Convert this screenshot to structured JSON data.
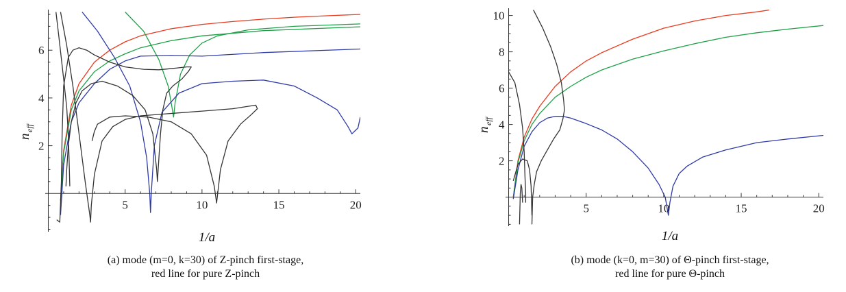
{
  "chart_data": [
    {
      "type": "line",
      "caption_line1": "(a) mode (m=0, k=30) of Z-pinch first-stage,",
      "caption_line2": "red line for pure Z-pinch",
      "xlabel": "1/a",
      "ylabel": "n_eff",
      "ylabel_main": "n",
      "ylabel_sub": "eff",
      "xlim": [
        -0.2,
        20.3
      ],
      "ylim": [
        -1.6,
        7.7
      ],
      "xticks": [
        5,
        10,
        15,
        20
      ],
      "yticks": [
        2,
        4,
        6
      ],
      "series": [
        {
          "color": "#e83a1e",
          "points": [
            [
              0.8,
              -0.3
            ],
            [
              1.0,
              1.8
            ],
            [
              1.5,
              3.7
            ],
            [
              2,
              4.6
            ],
            [
              3,
              5.5
            ],
            [
              4,
              6.0
            ],
            [
              5,
              6.35
            ],
            [
              6,
              6.6
            ],
            [
              8,
              6.9
            ],
            [
              10,
              7.08
            ],
            [
              12,
              7.2
            ],
            [
              14,
              7.3
            ],
            [
              16,
              7.38
            ],
            [
              18,
              7.44
            ],
            [
              20.3,
              7.5
            ]
          ]
        },
        {
          "color": "#1ea048",
          "points": [
            [
              0.8,
              -0.3
            ],
            [
              1.0,
              1.7
            ],
            [
              1.5,
              3.5
            ],
            [
              2,
              4.3
            ],
            [
              3,
              5.1
            ],
            [
              4,
              5.55
            ],
            [
              5,
              5.85
            ],
            [
              6,
              6.1
            ],
            [
              8,
              6.4
            ],
            [
              10,
              6.6
            ],
            [
              14,
              6.82
            ],
            [
              20.3,
              6.98
            ]
          ]
        },
        {
          "color": "#1ea048",
          "points": [
            [
              5,
              7.6
            ],
            [
              6.2,
              6.8
            ],
            [
              7.2,
              5.6
            ],
            [
              7.8,
              4.5
            ],
            [
              8.05,
              3.6
            ],
            [
              8.15,
              3.2
            ],
            [
              8.25,
              3.8
            ],
            [
              8.6,
              5.0
            ],
            [
              9.2,
              5.8
            ],
            [
              10,
              6.3
            ],
            [
              11,
              6.6
            ],
            [
              13,
              6.85
            ],
            [
              16,
              7.0
            ],
            [
              20.3,
              7.1
            ]
          ]
        },
        {
          "color": "#2e3aa6",
          "points": [
            [
              0.8,
              -0.9
            ],
            [
              1.0,
              1.2
            ],
            [
              1.5,
              3.0
            ],
            [
              2,
              3.8
            ],
            [
              3,
              4.6
            ],
            [
              4,
              5.2
            ],
            [
              5,
              5.55
            ],
            [
              6,
              5.75
            ],
            [
              8,
              5.78
            ],
            [
              10,
              5.75
            ],
            [
              14,
              5.9
            ],
            [
              20.3,
              6.05
            ]
          ]
        },
        {
          "color": "#2e3aa6",
          "points": [
            [
              2.2,
              7.6
            ],
            [
              3.2,
              6.8
            ],
            [
              4.3,
              5.7
            ],
            [
              5.3,
              4.5
            ],
            [
              6.0,
              3.0
            ],
            [
              6.4,
              1.5
            ],
            [
              6.6,
              0
            ],
            [
              6.65,
              -0.8
            ],
            [
              6.7,
              0
            ],
            [
              6.9,
              2.0
            ],
            [
              7.4,
              3.4
            ],
            [
              8.5,
              4.2
            ],
            [
              10,
              4.6
            ],
            [
              12,
              4.7
            ],
            [
              14,
              4.75
            ],
            [
              16,
              4.5
            ],
            [
              17.5,
              4.0
            ],
            [
              18.8,
              3.5
            ],
            [
              19.5,
              2.8
            ],
            [
              19.75,
              2.5
            ],
            [
              20.0,
              2.65
            ],
            [
              20.15,
              2.75
            ],
            [
              20.3,
              3.2
            ]
          ]
        },
        {
          "color": "#333333",
          "points": [
            [
              0.8,
              7.6
            ],
            [
              1.2,
              6.2
            ],
            [
              1.6,
              4.5
            ],
            [
              2,
              2.5
            ],
            [
              2.4,
              0.5
            ],
            [
              2.7,
              -0.9
            ],
            [
              2.75,
              -1.2
            ],
            [
              2.8,
              -0.5
            ],
            [
              3.0,
              0.8
            ],
            [
              3.5,
              2.2
            ],
            [
              4.2,
              2.8
            ],
            [
              5,
              3.1
            ],
            [
              6,
              3.25
            ],
            [
              8,
              3.35
            ],
            [
              10,
              3.45
            ],
            [
              12,
              3.55
            ],
            [
              13,
              3.65
            ],
            [
              13.5,
              3.7
            ],
            [
              13.6,
              3.55
            ],
            [
              13.2,
              3.3
            ],
            [
              12.5,
              2.9
            ],
            [
              11.7,
              2.2
            ],
            [
              11.2,
              1.0
            ],
            [
              10.95,
              -0.4
            ],
            [
              10.8,
              0.3
            ],
            [
              10.3,
              1.6
            ],
            [
              9.3,
              2.5
            ],
            [
              8.0,
              3.0
            ],
            [
              6.5,
              3.2
            ],
            [
              5,
              3.25
            ],
            [
              4,
              3.2
            ],
            [
              3.2,
              2.9
            ],
            [
              3.0,
              2.6
            ],
            [
              2.85,
              2.2
            ]
          ]
        },
        {
          "color": "#333333",
          "points": [
            [
              0.5,
              7.6
            ],
            [
              0.7,
              6.5
            ],
            [
              1.0,
              4.8
            ],
            [
              1.2,
              3.6
            ],
            [
              1.3,
              2.5
            ],
            [
              1.35,
              1.5
            ],
            [
              1.4,
              0.3
            ]
          ]
        },
        {
          "color": "#333333",
          "points": [
            [
              0.55,
              -1.1
            ],
            [
              0.75,
              -1.2
            ],
            [
              0.85,
              0.5
            ],
            [
              0.9,
              2.5
            ],
            [
              1.0,
              4.5
            ],
            [
              1.3,
              5.7
            ],
            [
              1.6,
              6.0
            ],
            [
              2.0,
              6.1
            ],
            [
              2.5,
              6.0
            ],
            [
              3,
              5.8
            ],
            [
              4,
              5.5
            ],
            [
              5,
              5.3
            ],
            [
              6.2,
              5.2
            ],
            [
              7.2,
              5.18
            ],
            [
              8.3,
              5.25
            ],
            [
              9.0,
              5.3
            ],
            [
              9.3,
              5.3
            ],
            [
              9.1,
              5.1
            ],
            [
              8.7,
              4.8
            ],
            [
              8.1,
              4.5
            ],
            [
              7.7,
              4.2
            ],
            [
              7.45,
              3.5
            ],
            [
              7.3,
              2.5
            ],
            [
              7.2,
              1.5
            ],
            [
              7.1,
              0.5
            ],
            [
              7.05,
              1.0
            ],
            [
              6.8,
              2.5
            ],
            [
              6.3,
              3.5
            ],
            [
              5.5,
              4.1
            ],
            [
              4.5,
              4.5
            ],
            [
              3.5,
              4.7
            ],
            [
              2.8,
              4.6
            ],
            [
              2.2,
              4.3
            ],
            [
              1.8,
              3.8
            ],
            [
              1.5,
              3.0
            ],
            [
              1.3,
              2.0
            ],
            [
              1.2,
              1.0
            ],
            [
              1.15,
              0.3
            ]
          ]
        }
      ]
    },
    {
      "type": "line",
      "caption_line1": "(b) mode (k=0, m=30) of Θ-pinch first-stage,",
      "caption_line2": "red line for pure Θ-pinch",
      "xlabel": "1/a",
      "ylabel": "n_eff",
      "ylabel_main": "n",
      "ylabel_sub": "eff",
      "xlim": [
        -0.2,
        20.3
      ],
      "ylim": [
        -1.6,
        10.4
      ],
      "xticks": [
        5,
        10,
        15,
        20
      ],
      "yticks": [
        2,
        4,
        6,
        8,
        10
      ],
      "series": [
        {
          "color": "#e83a1e",
          "points": [
            [
              0.3,
              0
            ],
            [
              0.6,
              2.0
            ],
            [
              1.0,
              3.3
            ],
            [
              1.5,
              4.3
            ],
            [
              2,
              5.0
            ],
            [
              3,
              6.1
            ],
            [
              4,
              6.9
            ],
            [
              5,
              7.5
            ],
            [
              6,
              7.95
            ],
            [
              8,
              8.7
            ],
            [
              10,
              9.3
            ],
            [
              12,
              9.7
            ],
            [
              14,
              10.0
            ],
            [
              16,
              10.2
            ],
            [
              16.8,
              10.3
            ]
          ]
        },
        {
          "color": "#1ea048",
          "points": [
            [
              0.3,
              0
            ],
            [
              0.6,
              1.9
            ],
            [
              1.0,
              3.1
            ],
            [
              1.5,
              4.0
            ],
            [
              2,
              4.6
            ],
            [
              3,
              5.5
            ],
            [
              4,
              6.1
            ],
            [
              5,
              6.6
            ],
            [
              6,
              7.0
            ],
            [
              8,
              7.6
            ],
            [
              10,
              8.05
            ],
            [
              12,
              8.45
            ],
            [
              14,
              8.8
            ],
            [
              16,
              9.05
            ],
            [
              18,
              9.25
            ],
            [
              20.3,
              9.45
            ]
          ]
        },
        {
          "color": "#2e3aa6",
          "points": [
            [
              0.3,
              -0.1
            ],
            [
              0.6,
              1.5
            ],
            [
              1.0,
              2.8
            ],
            [
              1.5,
              3.6
            ],
            [
              2.0,
              4.1
            ],
            [
              2.5,
              4.35
            ],
            [
              3,
              4.45
            ],
            [
              3.5,
              4.45
            ],
            [
              4,
              4.35
            ],
            [
              5,
              4.05
            ],
            [
              6,
              3.7
            ],
            [
              7,
              3.2
            ],
            [
              8,
              2.5
            ],
            [
              9,
              1.6
            ],
            [
              9.7,
              0.7
            ],
            [
              10.1,
              0
            ],
            [
              10.3,
              -1.0
            ],
            [
              10.4,
              -0.3
            ],
            [
              10.6,
              0.6
            ],
            [
              11,
              1.3
            ],
            [
              11.5,
              1.7
            ],
            [
              12.5,
              2.2
            ],
            [
              14,
              2.6
            ],
            [
              16,
              3.0
            ],
            [
              18,
              3.2
            ],
            [
              20.3,
              3.4
            ]
          ]
        },
        {
          "color": "#333333",
          "points": [
            [
              1.6,
              10.3
            ],
            [
              2.2,
              9.3
            ],
            [
              2.7,
              8.3
            ],
            [
              3.1,
              7.3
            ],
            [
              3.4,
              6.3
            ],
            [
              3.55,
              5.3
            ],
            [
              3.6,
              4.8
            ],
            [
              3.5,
              4.3
            ],
            [
              3.3,
              3.7
            ],
            [
              2.9,
              3.2
            ],
            [
              2.5,
              2.6
            ],
            [
              2.1,
              2.0
            ],
            [
              1.8,
              1.4
            ],
            [
              1.65,
              0.7
            ],
            [
              1.55,
              0
            ],
            [
              1.5,
              -1.5
            ]
          ]
        },
        {
          "color": "#333333",
          "points": [
            [
              0,
              6.9
            ],
            [
              0.4,
              6.3
            ],
            [
              0.7,
              5.1
            ],
            [
              0.9,
              3.8
            ],
            [
              1.0,
              2.5
            ],
            [
              1.05,
              1.2
            ],
            [
              1.1,
              0.2
            ],
            [
              1.1,
              -0.3
            ]
          ]
        },
        {
          "color": "#333333",
          "points": [
            [
              0.3,
              0.9
            ],
            [
              0.6,
              1.8
            ],
            [
              0.9,
              2.1
            ],
            [
              1.2,
              2.0
            ],
            [
              1.35,
              1.5
            ],
            [
              1.45,
              0.6
            ],
            [
              1.5,
              -1.0
            ]
          ]
        },
        {
          "color": "#333333",
          "points": [
            [
              0.7,
              -1.5
            ],
            [
              0.75,
              0.2
            ],
            [
              0.8,
              0.7
            ],
            [
              0.85,
              0.5
            ],
            [
              0.9,
              -0.3
            ]
          ]
        }
      ]
    }
  ]
}
